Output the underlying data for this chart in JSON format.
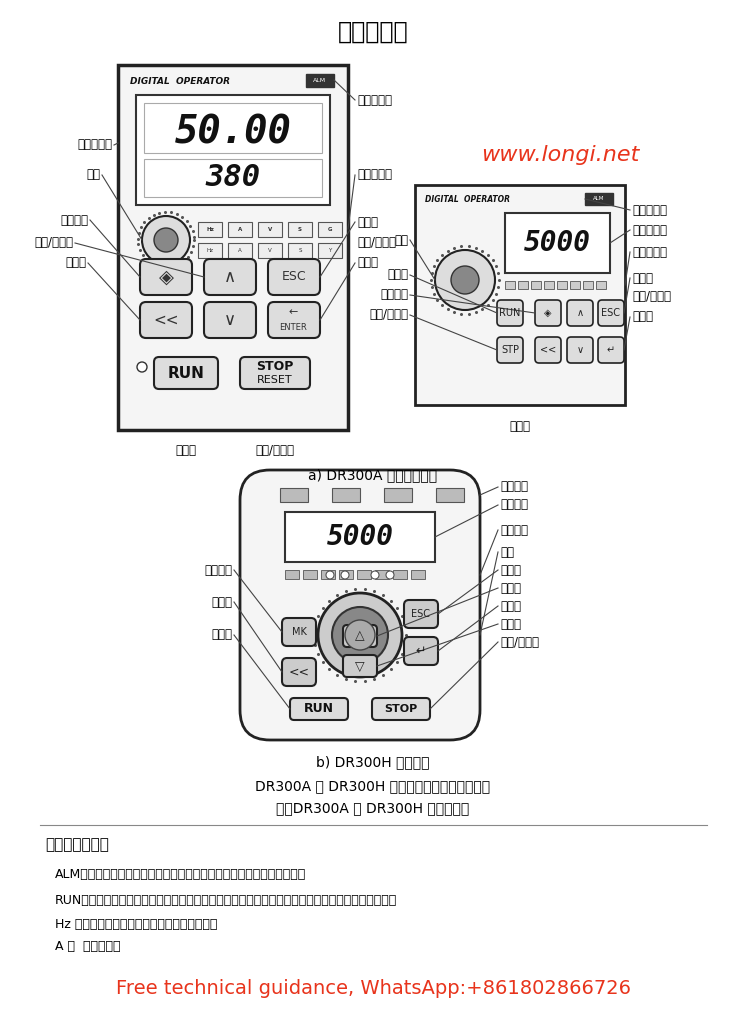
{
  "title": "操作与显示",
  "bg_color": "#ffffff",
  "text_color": "#000000",
  "red_color": "#e8341c",
  "website": "www.longi.net",
  "caption_a": "a) DR300A 外引大小键盘",
  "caption_b": "b) DR300H 外引键盘",
  "caption_c": "DR300A 和 DR300H 带电位器的外引键盘示意图",
  "caption_d": "注：DR300A 和 DR300H 键盘可通用",
  "section_title": "功能指示灯说明",
  "alm_text": "ALM：故障指示灯，当变频器出现故障时，此灯点亮，正常情况下熄灭。",
  "run_text": "RUN：灯灭时代表变频器处于待机状态，灯亮代表变频器处于运转状态，灯闪代表变频器正在停机。",
  "hz_text": "Hz ：频率单位，灯亮表示相应参数值的单位。",
  "a_text": "A ：  电流单位。",
  "footer_text": "Free technical guidance, WhatsApp:+861802866726"
}
